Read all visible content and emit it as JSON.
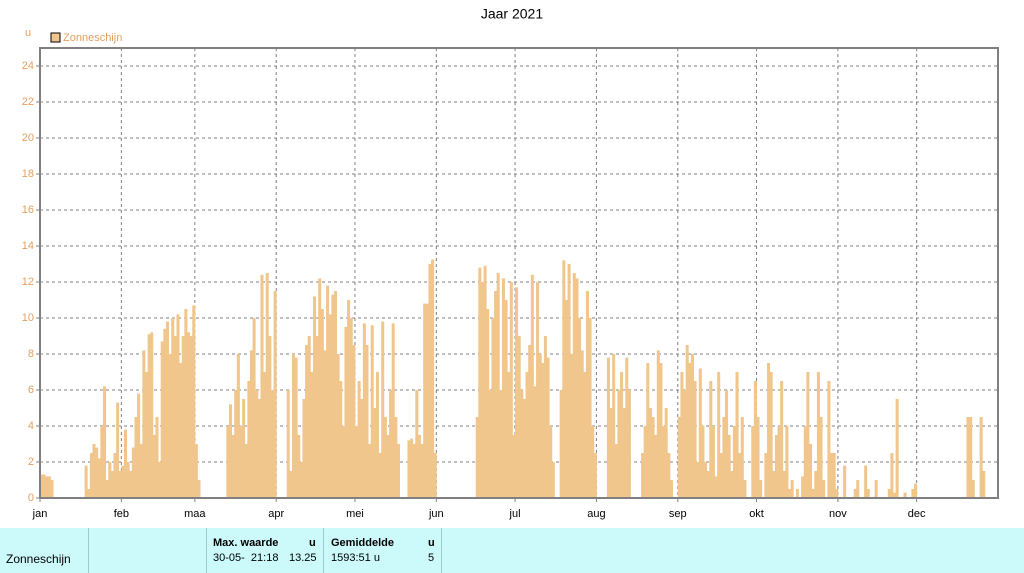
{
  "chart_data": {
    "type": "bar",
    "title": "Jaar 2021",
    "y_label": "u",
    "x": [
      0,
      1,
      2,
      3,
      4,
      5,
      6,
      7,
      8,
      9,
      10,
      11,
      12,
      13,
      14,
      15,
      16,
      17,
      18,
      19,
      20,
      21,
      22,
      23,
      24,
      25,
      26,
      27,
      28,
      29,
      30,
      31,
      32,
      33,
      34,
      35,
      36,
      37,
      38,
      39,
      40,
      41,
      42,
      43,
      44,
      45,
      46,
      47,
      48,
      49,
      50,
      51,
      52,
      53,
      54,
      55,
      56,
      57,
      58,
      59,
      60,
      61,
      62,
      63,
      64,
      65,
      66,
      67,
      68,
      69,
      70,
      71,
      72,
      73,
      74,
      75,
      76,
      77,
      78,
      79,
      80,
      81,
      82,
      83,
      84,
      85,
      86,
      87,
      88,
      89,
      90,
      91,
      92,
      93,
      94,
      95,
      96,
      97,
      98,
      99,
      100,
      101,
      102,
      103,
      104,
      105,
      106,
      107,
      108,
      109,
      110,
      111,
      112,
      113,
      114,
      115,
      116,
      117,
      118,
      119,
      120,
      121,
      122,
      123,
      124,
      125,
      126,
      127,
      128,
      129,
      130,
      131,
      132,
      133,
      134,
      135,
      136,
      137,
      138,
      139,
      140,
      141,
      142,
      143,
      144,
      145,
      146,
      147,
      148,
      149,
      150,
      151,
      152,
      153,
      154,
      155,
      156,
      157,
      158,
      159,
      160,
      161,
      162,
      163,
      164,
      165,
      166,
      167,
      168,
      169,
      170,
      171,
      172,
      173,
      174,
      175,
      176,
      177,
      178,
      179,
      180,
      181,
      182,
      183,
      184,
      185,
      186,
      187,
      188,
      189,
      190,
      191,
      192,
      193,
      194,
      195,
      196,
      197,
      198,
      199,
      200,
      201,
      202,
      203,
      204,
      205,
      206,
      207,
      208,
      209,
      210,
      211,
      212,
      213,
      214,
      215,
      216,
      217,
      218,
      219,
      220,
      221,
      222,
      223,
      224,
      225,
      226,
      227,
      228,
      229,
      230,
      231,
      232,
      233,
      234,
      235,
      236,
      237,
      238,
      239,
      240,
      241,
      242,
      243,
      244,
      245,
      246,
      247,
      248,
      249,
      250,
      251,
      252,
      253,
      254,
      255,
      256,
      257,
      258,
      259,
      260,
      261,
      262,
      263,
      264,
      265,
      266,
      267,
      268,
      269,
      270,
      271,
      272,
      273,
      274,
      275,
      276,
      277,
      278,
      279,
      280,
      281,
      282,
      283,
      284,
      285,
      286,
      287,
      288,
      289,
      290,
      291,
      292,
      293,
      294,
      295,
      296,
      297,
      298,
      299,
      300,
      301,
      302,
      303,
      304,
      305,
      306,
      307,
      308,
      309,
      310,
      311,
      312,
      313,
      314,
      315,
      316,
      317,
      318,
      319,
      320,
      321,
      322,
      323,
      324,
      325,
      326,
      327,
      328,
      329,
      330,
      331,
      332,
      333,
      334,
      335,
      336,
      337,
      338,
      339,
      340,
      341,
      342,
      343,
      344,
      345,
      346,
      347,
      348,
      349,
      350,
      351,
      352,
      353,
      354,
      355,
      356,
      357,
      358,
      359,
      360,
      361,
      362,
      363,
      364
    ],
    "series": [
      {
        "name": "Zonneschijn",
        "color": "#f0c68c",
        "values": [
          1.3,
          1.3,
          1.2,
          1.2,
          1.0,
          0,
          0,
          0,
          0,
          0,
          0,
          0,
          0,
          0,
          0,
          0,
          0,
          1.8,
          0.5,
          2.5,
          3.0,
          2.8,
          2.2,
          4.0,
          6.2,
          1.0,
          2.0,
          1.5,
          2.5,
          5.3,
          1.5,
          1.8,
          3.8,
          2.0,
          1.5,
          2.8,
          4.5,
          5.8,
          3.0,
          8.2,
          7.0,
          9.1,
          9.2,
          3.5,
          4.5,
          2.0,
          8.7,
          9.4,
          9.8,
          8.0,
          10.0,
          9.0,
          10.2,
          7.5,
          9.0,
          10.5,
          9.2,
          9.0,
          10.7,
          3.0,
          1.0,
          0,
          0,
          0,
          0,
          0,
          0,
          0,
          0,
          0,
          0,
          4.0,
          5.2,
          3.5,
          6.0,
          8.0,
          4.0,
          5.5,
          3.0,
          6.5,
          8.2,
          10.0,
          6.0,
          5.5,
          12.4,
          7.0,
          12.5,
          9.0,
          6.0,
          11.5,
          0,
          0,
          0,
          0,
          6.0,
          1.5,
          8.0,
          7.8,
          3.5,
          2.0,
          5.5,
          8.5,
          9.0,
          7.0,
          11.2,
          9.0,
          12.2,
          10.5,
          8.2,
          11.8,
          10.2,
          11.3,
          11.5,
          8.0,
          6.5,
          4.0,
          9.5,
          11.0,
          10.0,
          8.5,
          4.0,
          6.5,
          5.5,
          9.7,
          8.5,
          3.0,
          9.6,
          5.0,
          7.0,
          2.5,
          9.8,
          4.5,
          3.5,
          6.0,
          9.7,
          4.5,
          3.0,
          0,
          0,
          0,
          3.2,
          3.3,
          3.0,
          6.0,
          3.5,
          3.0,
          10.8,
          10.8,
          13.0,
          13.25,
          2.5,
          0,
          0,
          0,
          0,
          0,
          0,
          0,
          0,
          0,
          0,
          0,
          0,
          0,
          0,
          0,
          4.5,
          12.8,
          12.0,
          12.9,
          10.5,
          6.0,
          10.0,
          11.5,
          12.5,
          6.0,
          12.2,
          11.0,
          7.0,
          12.0,
          3.5,
          11.7,
          9.0,
          6.0,
          5.5,
          7.0,
          8.5,
          12.4,
          6.2,
          12.0,
          8.0,
          7.5,
          9.0,
          7.8,
          4.0,
          2.0,
          0,
          0,
          6.0,
          13.2,
          11.0,
          13.0,
          8.0,
          12.5,
          12.2,
          10.0,
          8.2,
          7.0,
          11.5,
          10.0,
          4.0,
          2.5,
          0,
          0,
          0,
          0,
          7.8,
          5.0,
          8.0,
          3.0,
          6.0,
          7.0,
          5.0,
          7.8,
          6.0,
          0,
          0,
          0,
          0,
          2.5,
          4.0,
          7.5,
          5.0,
          4.5,
          3.5,
          8.2,
          7.5,
          4.0,
          5.0,
          2.5,
          1.0,
          0,
          0,
          4.5,
          7.0,
          6.0,
          8.5,
          7.5,
          8.0,
          6.5,
          2.0,
          7.2,
          4.0,
          2.0,
          1.5,
          6.5,
          4.0,
          1.2,
          7.0,
          2.5,
          4.5,
          6.0,
          3.5,
          1.5,
          4.0,
          7.0,
          2.5,
          4.5,
          1.0,
          0,
          0,
          4.0,
          6.5,
          4.5,
          1.0,
          0,
          2.5,
          7.5,
          7.0,
          1.5,
          3.5,
          4.0,
          6.5,
          1.5,
          4.0,
          0.5,
          1.0,
          0,
          0.5,
          0,
          1.2,
          4.0,
          7.0,
          3.0,
          0.5,
          1.5,
          7.0,
          4.5,
          1.0,
          0,
          6.5,
          2.5,
          2.5,
          0.5,
          0,
          0,
          1.8,
          0,
          0,
          0,
          0.5,
          1.0,
          0,
          0,
          1.8,
          0.5,
          0,
          0,
          1.0,
          0,
          0,
          0,
          0,
          0.5,
          2.5,
          0.3,
          5.5,
          0,
          0,
          0.3,
          0,
          0,
          0.5,
          0.8,
          0,
          0,
          0,
          0,
          0,
          0,
          0,
          0,
          0,
          0,
          0,
          0,
          0,
          0,
          0,
          0,
          0,
          0,
          0,
          4.5,
          4.5,
          1.0,
          0,
          0,
          4.5,
          1.5,
          0,
          0,
          0,
          0,
          0
        ]
      }
    ],
    "xlim": [
      0,
      365
    ],
    "xticks": [
      {
        "value": 0,
        "label": "jan"
      },
      {
        "value": 31,
        "label": "feb"
      },
      {
        "value": 59,
        "label": "maa"
      },
      {
        "value": 90,
        "label": "apr"
      },
      {
        "value": 120,
        "label": "mei"
      },
      {
        "value": 151,
        "label": "jun"
      },
      {
        "value": 181,
        "label": "jul"
      },
      {
        "value": 212,
        "label": "aug"
      },
      {
        "value": 243,
        "label": "sep"
      },
      {
        "value": 273,
        "label": "okt"
      },
      {
        "value": 304,
        "label": "nov"
      },
      {
        "value": 334,
        "label": "dec"
      }
    ],
    "ylim": [
      0,
      25
    ],
    "yticks": [
      0,
      2,
      4,
      6,
      8,
      10,
      12,
      14,
      16,
      18,
      20,
      22,
      24
    ],
    "grid": true
  },
  "table": {
    "columns": [
      {
        "title": "Max. waarde",
        "unit": "u"
      },
      {
        "title": "Gemiddelde",
        "unit": "u"
      }
    ],
    "rows": [
      {
        "label": "Zonneschijn",
        "max_time": "30-05-  21:18",
        "max_value": "13.25",
        "avg_value": "1593:51 u",
        "avg_count": "5"
      }
    ]
  }
}
